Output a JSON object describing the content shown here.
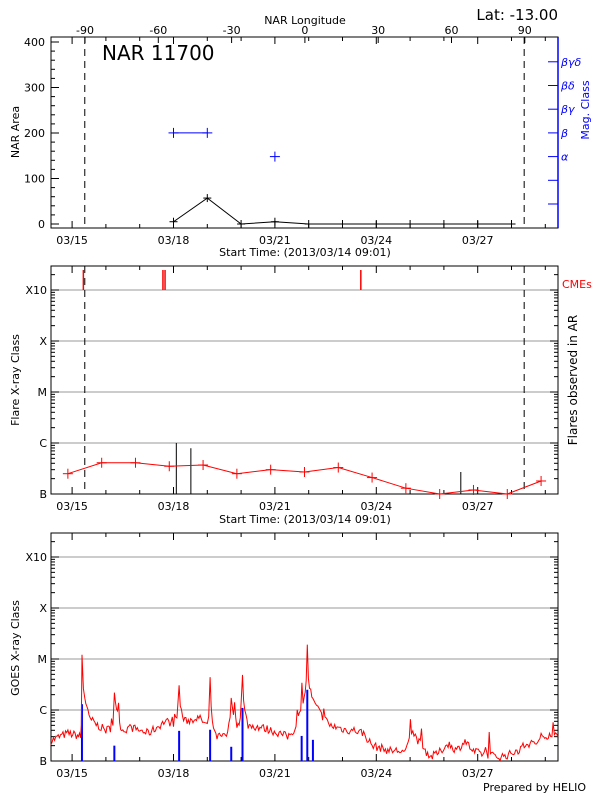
{
  "header": {
    "lat_label": "Lat: -13.00",
    "region_title": "NAR 11700",
    "footer": "Prepared by HELIO"
  },
  "colors": {
    "area_series": "#000000",
    "mag_class": "#0000ff",
    "flare_curve": "#ff0000",
    "cme": "#ff0000",
    "goes_long": "#ff0000",
    "goes_short": "#0000ff",
    "grid": "#999999"
  },
  "time_axis": {
    "xlim": [
      "2013-03-14T09:01",
      "2013-03-29T09:01"
    ],
    "xlabel": "Start Time: (2013/03/14 09:01)",
    "ticks": [
      {
        "label": "03/15",
        "date": "2013-03-15T00:00"
      },
      {
        "label": "03/18",
        "date": "2013-03-18T00:00"
      },
      {
        "label": "03/21",
        "date": "2013-03-21T00:00"
      },
      {
        "label": "03/24",
        "date": "2013-03-24T00:00"
      },
      {
        "label": "03/27",
        "date": "2013-03-27T00:00"
      }
    ],
    "limb_lines": [
      "2013-03-15T09:00",
      "2013-03-28T09:00"
    ]
  },
  "chart_data": [
    {
      "type": "line",
      "title": "NAR 11700",
      "x_top_label": "NAR Longitude",
      "x_top_ticks": [
        "-90",
        "-60",
        "-30",
        "0",
        "30",
        "60",
        "90"
      ],
      "xlabel": "Start Time: (2013/03/14 09:01)",
      "ylabel": "NAR Area",
      "y2label": "Mag. Class",
      "ylim": [
        0,
        400
      ],
      "yticks": [
        "0",
        "100",
        "200",
        "300",
        "400"
      ],
      "series": [
        {
          "points": [
            [
              "2013-03-18T00:00",
              5
            ],
            [
              "2013-03-19T00:00",
              57
            ],
            [
              "2013-03-20T00:00",
              0
            ],
            [
              "2013-03-21T00:00",
              5
            ],
            [
              "2013-03-22T00:00",
              0
            ],
            [
              "2013-03-23T00:00",
              0
            ],
            [
              "2013-03-24T00:00",
              0
            ],
            [
              "2013-03-25T00:00",
              0
            ],
            [
              "2013-03-26T00:00",
              0
            ],
            [
              "2013-03-27T00:00",
              0
            ],
            [
              "2013-03-28T00:00",
              0
            ]
          ]
        }
      ],
      "mag_class": {
        "levels": [
          "",
          "",
          "α",
          "β",
          "βγ",
          "βδ",
          "βγδ"
        ],
        "points": [
          [
            "2013-03-18T00:00",
            "β"
          ],
          [
            "2013-03-19T00:00",
            "β"
          ],
          [
            "2013-03-21T00:00",
            "α"
          ]
        ],
        "connected": [
          [
            0,
            1
          ]
        ]
      }
    },
    {
      "type": "line",
      "xlabel": "Start Time: (2013/03/14 09:01)",
      "ylabel": "Flare X-ray Class",
      "y2label": "Flares observed in AR",
      "cme_label": "CMEs",
      "yscale": "log",
      "ylim": [
        1e-07,
        0.00295
      ],
      "class_ticks": [
        "B",
        "C",
        "M",
        "X",
        "X10"
      ],
      "series": [
        {
          "points": [
            [
              "2013-03-14T21:00",
              2.5e-07
            ],
            [
              "2013-03-15T21:00",
              4.1e-07
            ],
            [
              "2013-03-16T21:00",
              4.1e-07
            ],
            [
              "2013-03-17T21:00",
              3.5e-07
            ],
            [
              "2013-03-18T21:00",
              3.7e-07
            ],
            [
              "2013-03-19T21:00",
              2.5e-07
            ],
            [
              "2013-03-20T21:00",
              3e-07
            ],
            [
              "2013-03-21T21:00",
              2.7e-07
            ],
            [
              "2013-03-22T21:00",
              3.3e-07
            ],
            [
              "2013-03-23T21:00",
              2.1e-07
            ],
            [
              "2013-03-24T21:00",
              1.3e-07
            ],
            [
              "2013-03-25T21:00",
              1e-07
            ],
            [
              "2013-03-26T21:00",
              1.2e-07
            ],
            [
              "2013-03-27T21:00",
              1e-07
            ],
            [
              "2013-03-28T21:00",
              1.8e-07
            ]
          ]
        }
      ],
      "flares": [
        [
          "2013-03-18T02:00",
          1e-06
        ],
        [
          "2013-03-18T12:20",
          7.9e-07
        ],
        [
          "2013-03-26T12:00",
          2.7e-07
        ]
      ],
      "cmes": [
        "2013-03-15T08:00",
        "2013-03-17T16:30",
        "2013-03-17T18:00",
        "2013-03-23T13:00"
      ]
    },
    {
      "type": "line",
      "ylabel": "GOES X-ray Class",
      "yscale": "log",
      "ylim": [
        1e-07,
        0.00295
      ],
      "class_ticks": [
        "B",
        "C",
        "M",
        "X",
        "X10"
      ],
      "series": [
        {
          "channel": "long",
          "points": [
            [
              "2013-03-14T09:00",
              2.5e-07
            ],
            [
              "2013-03-14T15:00",
              3e-07
            ],
            [
              "2013-03-14T21:00",
              3.5e-07
            ],
            [
              "2013-03-15T03:00",
              3.2e-07
            ],
            [
              "2013-03-15T06:00",
              3e-07
            ],
            [
              "2013-03-15T07:00",
              1.2e-05
            ],
            [
              "2013-03-15T09:00",
              1.8e-06
            ],
            [
              "2013-03-15T12:00",
              7e-07
            ],
            [
              "2013-03-15T18:00",
              5e-07
            ],
            [
              "2013-03-16T00:00",
              4e-07
            ],
            [
              "2013-03-16T04:00",
              4.5e-07
            ],
            [
              "2013-03-16T06:00",
              2.2e-06
            ],
            [
              "2013-03-16T09:00",
              6e-07
            ],
            [
              "2013-03-16T12:00",
              4e-07
            ],
            [
              "2013-03-16T18:00",
              4.5e-07
            ],
            [
              "2013-03-17T00:00",
              4e-07
            ],
            [
              "2013-03-17T06:00",
              3.5e-07
            ],
            [
              "2013-03-17T12:00",
              4.5e-07
            ],
            [
              "2013-03-17T18:00",
              6e-07
            ],
            [
              "2013-03-18T00:00",
              5.5e-07
            ],
            [
              "2013-03-18T04:00",
              3.1e-06
            ],
            [
              "2013-03-18T08:00",
              6e-07
            ],
            [
              "2013-03-18T18:00",
              7e-07
            ],
            [
              "2013-03-19T00:00",
              5e-07
            ],
            [
              "2013-03-19T02:00",
              4.5e-06
            ],
            [
              "2013-03-19T06:00",
              3e-07
            ],
            [
              "2013-03-19T12:00",
              3e-07
            ],
            [
              "2013-03-19T17:00",
              1.5e-06
            ],
            [
              "2013-03-19T21:00",
              5e-07
            ],
            [
              "2013-03-20T01:00",
              5.6e-06
            ],
            [
              "2013-03-20T05:00",
              5e-07
            ],
            [
              "2013-03-20T15:00",
              4.5e-07
            ],
            [
              "2013-03-20T21:00",
              4e-07
            ],
            [
              "2013-03-21T03:00",
              3.5e-07
            ],
            [
              "2013-03-21T09:00",
              3e-07
            ],
            [
              "2013-03-21T15:00",
              4.5e-07
            ],
            [
              "2013-03-21T20:00",
              1.5e-06
            ],
            [
              "2013-03-21T23:00",
              1.7e-05
            ],
            [
              "2013-03-22T03:00",
              1.5e-06
            ],
            [
              "2013-03-22T09:00",
              8e-07
            ],
            [
              "2013-03-22T15:00",
              5e-07
            ],
            [
              "2013-03-22T21:00",
              4.5e-07
            ],
            [
              "2013-03-23T03:00",
              4e-07
            ],
            [
              "2013-03-23T09:00",
              4e-07
            ],
            [
              "2013-03-23T15:00",
              3.5e-07
            ],
            [
              "2013-03-23T21:00",
              2e-07
            ],
            [
              "2013-03-24T03:00",
              1.8e-07
            ],
            [
              "2013-03-24T09:00",
              1.6e-07
            ],
            [
              "2013-03-24T15:00",
              1.6e-07
            ],
            [
              "2013-03-24T21:00",
              1.5e-07
            ],
            [
              "2013-03-25T01:00",
              4e-07
            ],
            [
              "2013-03-25T09:00",
              1.8e-07
            ],
            [
              "2013-03-25T15:00",
              1.2e-07
            ],
            [
              "2013-03-25T21:00",
              1.5e-07
            ],
            [
              "2013-03-26T03:00",
              2.2e-07
            ],
            [
              "2013-03-26T09:00",
              1.6e-07
            ],
            [
              "2013-03-26T15:00",
              2.5e-07
            ],
            [
              "2013-03-26T21:00",
              1.5e-07
            ],
            [
              "2013-03-27T03:00",
              1.4e-07
            ],
            [
              "2013-03-27T09:00",
              1.3e-07
            ],
            [
              "2013-03-27T15:00",
              1.2e-07
            ],
            [
              "2013-03-27T21:00",
              1.3e-07
            ],
            [
              "2013-03-28T03:00",
              1.5e-07
            ],
            [
              "2013-03-28T09:00",
              2e-07
            ],
            [
              "2013-03-28T15:00",
              2.2e-07
            ],
            [
              "2013-03-28T21:00",
              2.5e-07
            ],
            [
              "2013-03-29T03:00",
              3.5e-07
            ],
            [
              "2013-03-29T09:00",
              3e-07
            ]
          ]
        },
        {
          "channel": "short",
          "bars": [
            [
              "2013-03-15T07:00",
              1.3e-06
            ],
            [
              "2013-03-16T06:00",
              2e-07
            ],
            [
              "2013-03-18T04:00",
              3.9e-07
            ],
            [
              "2013-03-19T02:00",
              4.1e-07
            ],
            [
              "2013-03-19T17:00",
              1.9e-07
            ],
            [
              "2013-03-20T01:00",
              1.1e-06
            ],
            [
              "2013-03-21T19:00",
              3.1e-07
            ],
            [
              "2013-03-21T23:00",
              2.5e-06
            ],
            [
              "2013-03-22T03:00",
              2.6e-07
            ]
          ]
        }
      ]
    }
  ]
}
